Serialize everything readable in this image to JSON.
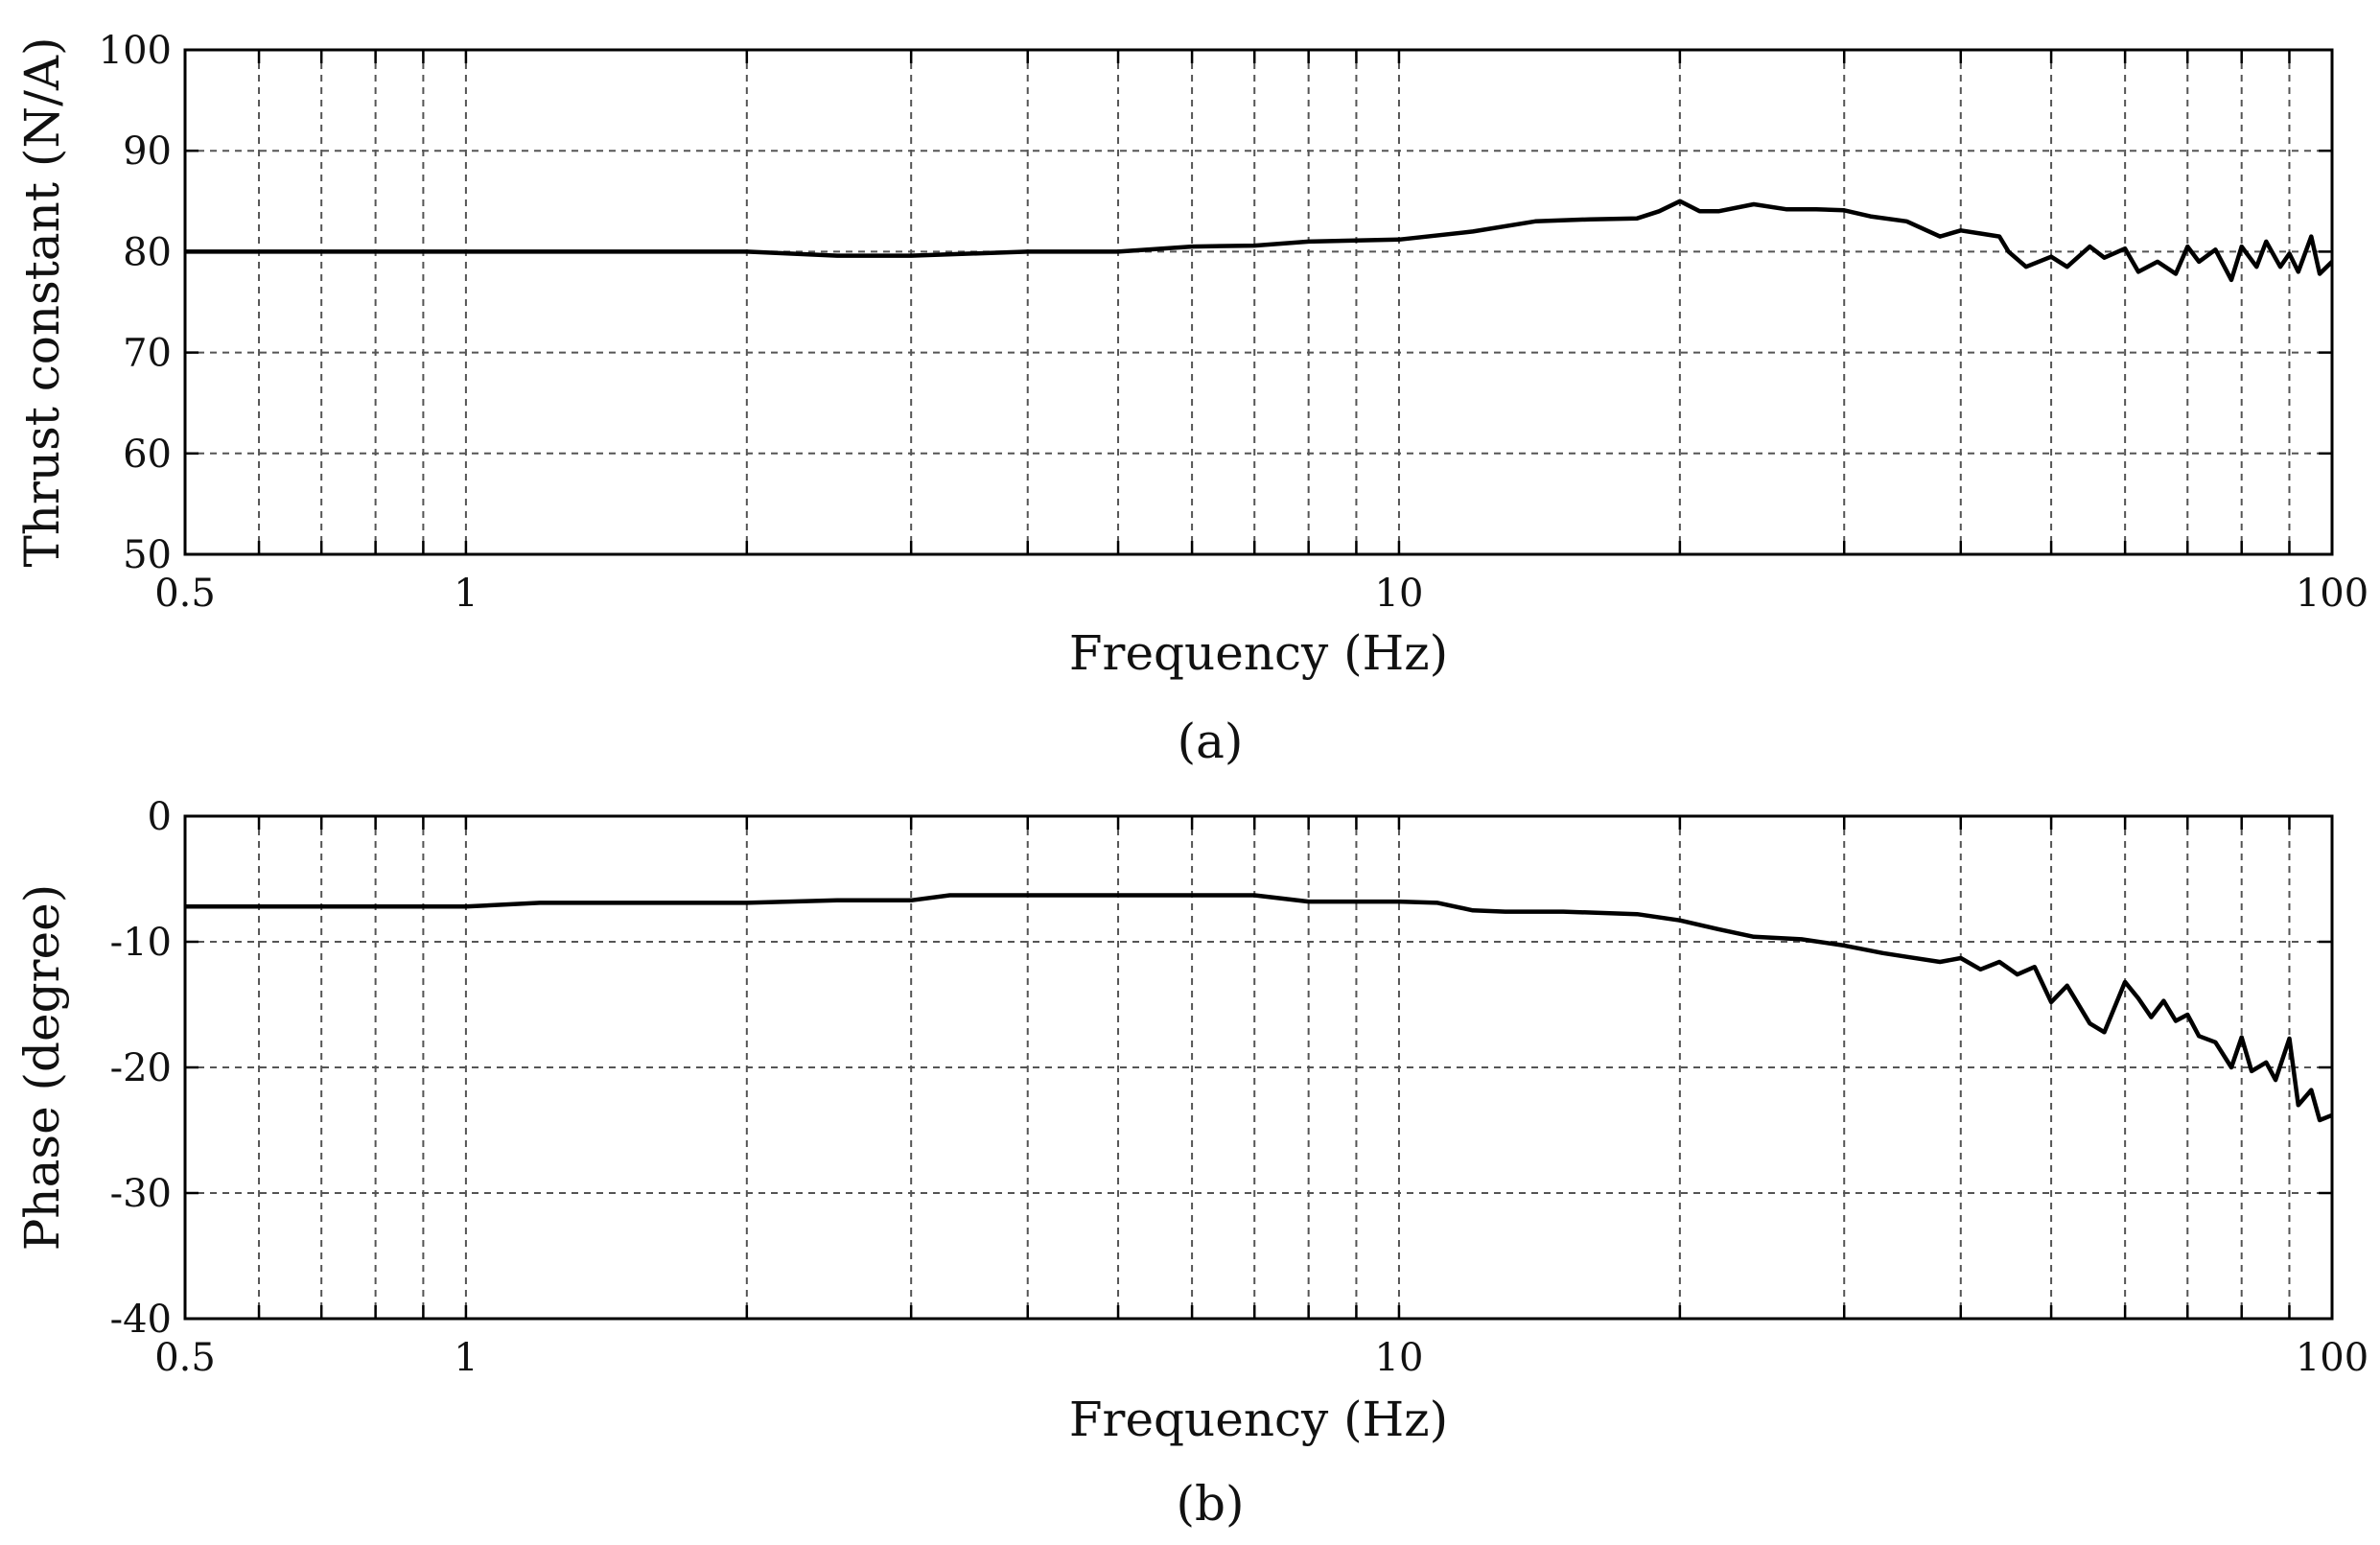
{
  "chart_data": [
    {
      "type": "line",
      "caption": "(a)",
      "xlabel": "Frequency (Hz)",
      "ylabel": "Thrust constant (N/A)",
      "xscale": "log",
      "xlim": [
        0.5,
        100
      ],
      "ylim": [
        50,
        100
      ],
      "grid": true,
      "xticks": [
        0.5,
        1,
        10,
        100
      ],
      "xtick_labels": [
        "0.5",
        "1",
        "10",
        "100"
      ],
      "yticks": [
        50,
        60,
        70,
        80,
        90,
        100
      ],
      "ytick_labels": [
        "50",
        "60",
        "70",
        "80",
        "90",
        "100"
      ],
      "series": [
        {
          "x": [
            0.5,
            1,
            2,
            2.5,
            3,
            4,
            5,
            6,
            7,
            8,
            10,
            12,
            14,
            16,
            18,
            19,
            20,
            21,
            22,
            24,
            26,
            28,
            30,
            32,
            35,
            38,
            40,
            42,
            44,
            45,
            47,
            50,
            52,
            55,
            57,
            60,
            62,
            65,
            68,
            70,
            72,
            75,
            78,
            80,
            83,
            85,
            88,
            90,
            92,
            95,
            97,
            100
          ],
          "y": [
            80,
            80,
            80,
            79.6,
            79.6,
            80,
            80,
            80.5,
            80.6,
            81,
            81.2,
            82,
            83,
            83.2,
            83.3,
            84,
            85,
            84,
            84,
            84.7,
            84.2,
            84.2,
            84.1,
            83.5,
            83,
            81.5,
            82.1,
            81.8,
            81.5,
            80,
            78.5,
            79.5,
            78.5,
            80.5,
            79.4,
            80.3,
            78,
            79,
            77.8,
            80.5,
            79,
            80.2,
            77.2,
            80.5,
            78.5,
            81,
            78.5,
            79.8,
            78,
            81.5,
            77.8,
            79
          ]
        }
      ]
    },
    {
      "type": "line",
      "caption": "(b)",
      "xlabel": "Frequency (Hz)",
      "ylabel": "Phase (degree)",
      "xscale": "log",
      "xlim": [
        0.5,
        100
      ],
      "ylim": [
        -40,
        0
      ],
      "grid": true,
      "xticks": [
        0.5,
        1,
        10,
        100
      ],
      "xtick_labels": [
        "0.5",
        "1",
        "10",
        "100"
      ],
      "yticks": [
        -40,
        -30,
        -20,
        -10,
        0
      ],
      "ytick_labels": [
        "-40",
        "-30",
        "-20",
        "-10",
        "0"
      ],
      "series": [
        {
          "x": [
            0.5,
            1,
            1.2,
            2,
            2.5,
            3,
            3.3,
            5,
            7,
            8,
            10,
            11,
            12,
            13,
            15,
            18,
            20,
            22,
            24,
            27,
            30,
            33,
            35,
            38,
            40,
            42,
            44,
            46,
            48,
            50,
            52,
            55,
            57,
            60,
            62,
            64,
            66,
            68,
            70,
            72,
            75,
            78,
            80,
            82,
            85,
            87,
            90,
            92,
            95,
            97,
            100
          ],
          "y": [
            -7.2,
            -7.2,
            -6.9,
            -6.9,
            -6.7,
            -6.7,
            -6.3,
            -6.3,
            -6.3,
            -6.8,
            -6.8,
            -6.9,
            -7.5,
            -7.6,
            -7.6,
            -7.8,
            -8.3,
            -9,
            -9.6,
            -9.8,
            -10.3,
            -10.9,
            -11.2,
            -11.6,
            -11.3,
            -12.2,
            -11.6,
            -12.6,
            -12.0,
            -14.8,
            -13.5,
            -16.5,
            -17.2,
            -13.2,
            -14.5,
            -16.0,
            -14.7,
            -16.3,
            -15.8,
            -17.5,
            -18.0,
            -20.0,
            -17.6,
            -20.3,
            -19.6,
            -21.0,
            -17.7,
            -23.0,
            -21.8,
            -24.2,
            -23.8
          ]
        }
      ]
    }
  ]
}
